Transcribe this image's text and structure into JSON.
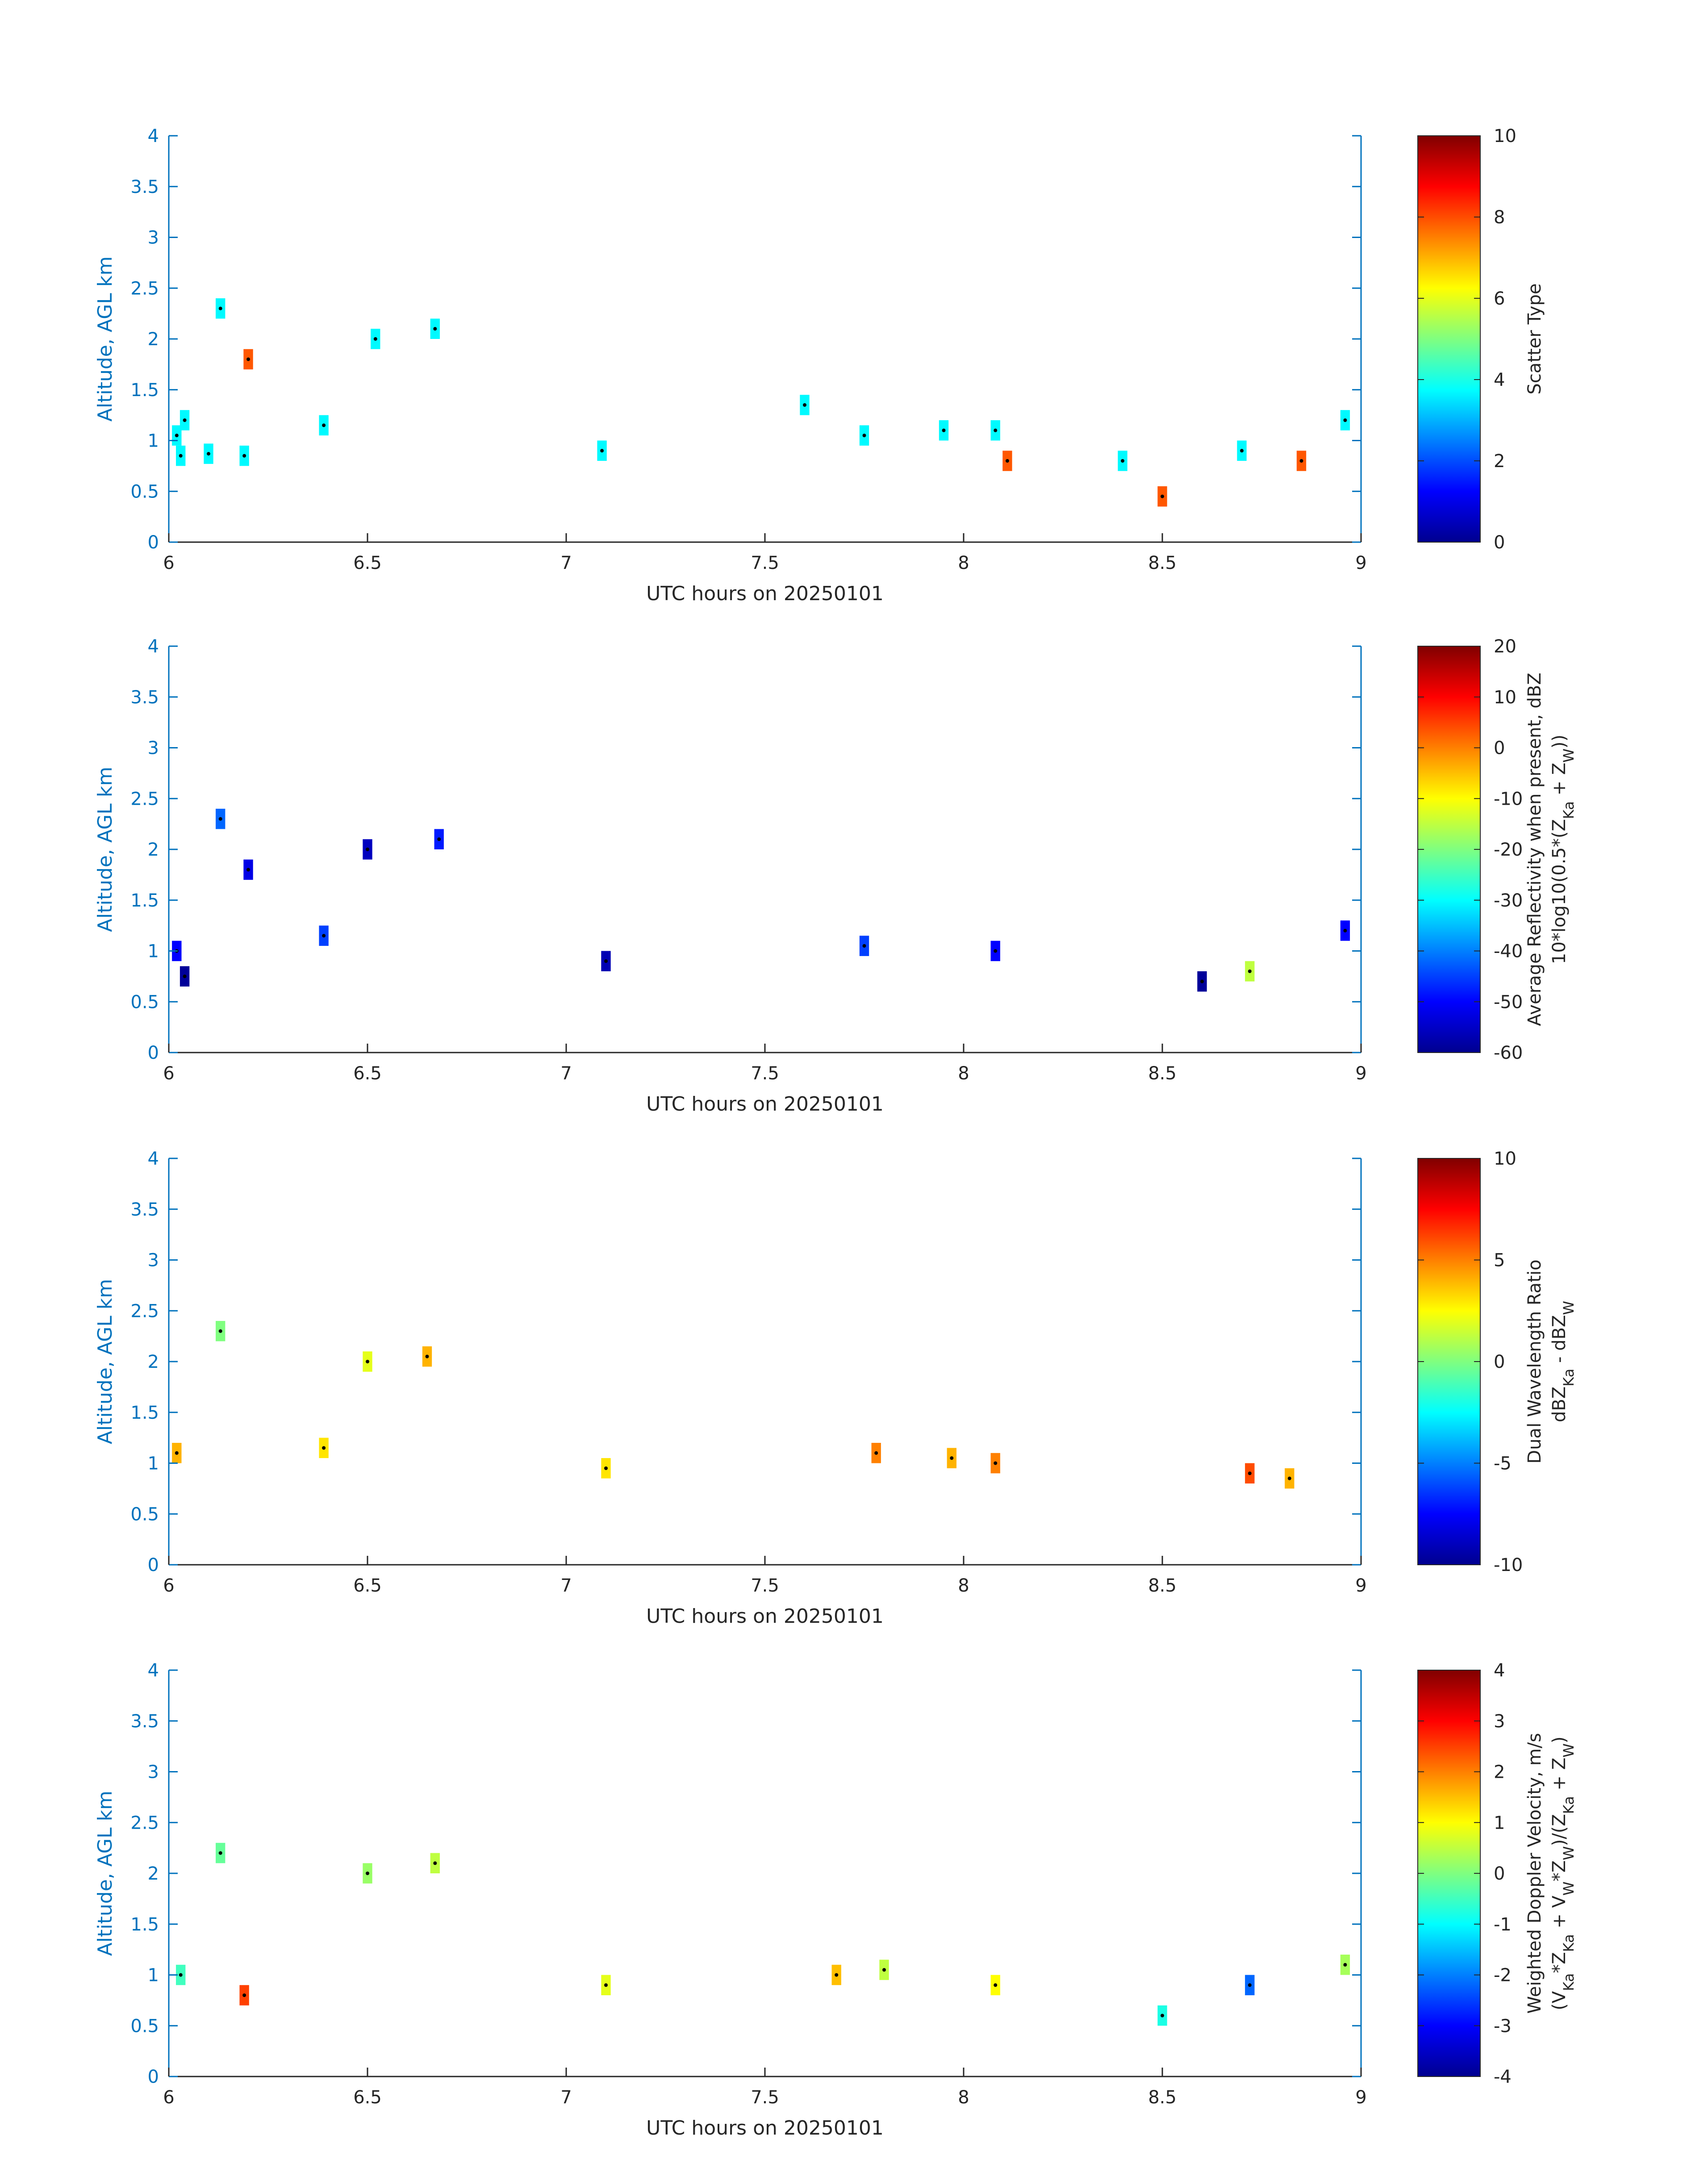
{
  "colors": {
    "axis_blue": "#0072BD",
    "text": "#262626",
    "scatter_fill": "#33FFDD",
    "scatter_alt": "#F44A14",
    "marker": "#000000"
  },
  "colormap": "jet",
  "chart_data": [
    {
      "type": "heatmap",
      "title": "",
      "xlabel": "UTC hours on 20250101",
      "ylabel": "Altitude, AGL km",
      "xlim": [
        6,
        9
      ],
      "ylim": [
        0,
        4
      ],
      "xticks": [
        "6",
        "6.5",
        "7",
        "7.5",
        "8",
        "8.5",
        "9"
      ],
      "yticks": [
        "0",
        "0.5",
        "1",
        "1.5",
        "2",
        "2.5",
        "3",
        "3.5",
        "4"
      ],
      "colorbar": {
        "label": "Scatter Type",
        "clim": [
          0,
          10
        ],
        "ticks": [
          "0",
          "2",
          "4",
          "6",
          "8",
          "10"
        ]
      },
      "cells": [
        {
          "t": 6.02,
          "a": 1.05,
          "v": 3.7
        },
        {
          "t": 6.03,
          "a": 0.85,
          "v": 3.7
        },
        {
          "t": 6.04,
          "a": 1.2,
          "v": 3.7
        },
        {
          "t": 6.1,
          "a": 0.87,
          "v": 3.7
        },
        {
          "t": 6.13,
          "a": 2.3,
          "v": 3.7
        },
        {
          "t": 6.19,
          "a": 0.85,
          "v": 3.7
        },
        {
          "t": 6.2,
          "a": 1.8,
          "v": 7.9
        },
        {
          "t": 6.39,
          "a": 1.15,
          "v": 3.7
        },
        {
          "t": 6.52,
          "a": 2.0,
          "v": 3.7
        },
        {
          "t": 6.67,
          "a": 2.1,
          "v": 3.7
        },
        {
          "t": 7.09,
          "a": 0.9,
          "v": 3.7
        },
        {
          "t": 7.6,
          "a": 1.35,
          "v": 3.7
        },
        {
          "t": 7.75,
          "a": 1.05,
          "v": 3.7
        },
        {
          "t": 7.95,
          "a": 1.1,
          "v": 3.7
        },
        {
          "t": 8.08,
          "a": 1.1,
          "v": 3.7
        },
        {
          "t": 8.11,
          "a": 0.8,
          "v": 7.9
        },
        {
          "t": 8.4,
          "a": 0.8,
          "v": 3.7
        },
        {
          "t": 8.5,
          "a": 0.45,
          "v": 7.9
        },
        {
          "t": 8.7,
          "a": 0.9,
          "v": 3.7
        },
        {
          "t": 8.85,
          "a": 0.8,
          "v": 7.9
        },
        {
          "t": 8.96,
          "a": 1.2,
          "v": 3.7
        }
      ]
    },
    {
      "type": "heatmap",
      "title": "",
      "xlabel": "UTC hours on 20250101",
      "ylabel": "Altitude, AGL km",
      "xlim": [
        6,
        9
      ],
      "ylim": [
        0,
        4
      ],
      "xticks": [
        "6",
        "6.5",
        "7",
        "7.5",
        "8",
        "8.5",
        "9"
      ],
      "yticks": [
        "0",
        "0.5",
        "1",
        "1.5",
        "2",
        "2.5",
        "3",
        "3.5",
        "4"
      ],
      "colorbar": {
        "label": "Average Reflectivity when present, dBZ",
        "label2": "10*log10(0.5*(Z_Ka + Z_W))",
        "clim": [
          -60,
          20
        ],
        "ticks": [
          "-60",
          "-50",
          "-40",
          "-30",
          "-20",
          "-10",
          "0",
          "10",
          "20"
        ]
      },
      "cells": [
        {
          "t": 6.02,
          "a": 1.0,
          "v": -50
        },
        {
          "t": 6.04,
          "a": 0.75,
          "v": -58
        },
        {
          "t": 6.13,
          "a": 2.3,
          "v": -42
        },
        {
          "t": 6.2,
          "a": 1.8,
          "v": -52
        },
        {
          "t": 6.39,
          "a": 1.15,
          "v": -45
        },
        {
          "t": 6.5,
          "a": 2.0,
          "v": -55
        },
        {
          "t": 6.68,
          "a": 2.1,
          "v": -48
        },
        {
          "t": 7.1,
          "a": 0.9,
          "v": -56
        },
        {
          "t": 7.75,
          "a": 1.05,
          "v": -45
        },
        {
          "t": 8.08,
          "a": 1.0,
          "v": -50
        },
        {
          "t": 8.6,
          "a": 0.7,
          "v": -58
        },
        {
          "t": 8.72,
          "a": 0.8,
          "v": -15
        },
        {
          "t": 8.96,
          "a": 1.2,
          "v": -50
        }
      ]
    },
    {
      "type": "heatmap",
      "title": "",
      "xlabel": "UTC hours on 20250101",
      "ylabel": "Altitude, AGL km",
      "xlim": [
        6,
        9
      ],
      "ylim": [
        0,
        4
      ],
      "xticks": [
        "6",
        "6.5",
        "7",
        "7.5",
        "8",
        "8.5",
        "9"
      ],
      "yticks": [
        "0",
        "0.5",
        "1",
        "1.5",
        "2",
        "2.5",
        "3",
        "3.5",
        "4"
      ],
      "colorbar": {
        "label": "Dual Wavelength Ratio",
        "label2": "dBZ_Ka - dBZ_W",
        "clim": [
          -10,
          10
        ],
        "ticks": [
          "-10",
          "-5",
          "0",
          "5",
          "10"
        ]
      },
      "cells": [
        {
          "t": 6.02,
          "a": 1.1,
          "v": 4
        },
        {
          "t": 6.13,
          "a": 2.3,
          "v": 0
        },
        {
          "t": 6.39,
          "a": 1.15,
          "v": 3
        },
        {
          "t": 6.5,
          "a": 2.0,
          "v": 2
        },
        {
          "t": 6.65,
          "a": 2.05,
          "v": 4
        },
        {
          "t": 7.1,
          "a": 0.95,
          "v": 3
        },
        {
          "t": 7.78,
          "a": 1.1,
          "v": 5
        },
        {
          "t": 7.97,
          "a": 1.05,
          "v": 4
        },
        {
          "t": 8.08,
          "a": 1.0,
          "v": 5
        },
        {
          "t": 8.72,
          "a": 0.9,
          "v": 6
        },
        {
          "t": 8.82,
          "a": 0.85,
          "v": 4
        }
      ]
    },
    {
      "type": "heatmap",
      "title": "",
      "xlabel": "UTC hours on 20250101",
      "ylabel": "Altitude, AGL km",
      "xlim": [
        6,
        9
      ],
      "ylim": [
        0,
        4
      ],
      "xticks": [
        "6",
        "6.5",
        "7",
        "7.5",
        "8",
        "8.5",
        "9"
      ],
      "yticks": [
        "0",
        "0.5",
        "1",
        "1.5",
        "2",
        "2.5",
        "3",
        "3.5",
        "4"
      ],
      "colorbar": {
        "label": "Weighted Doppler Velocity, m/s",
        "label2": "(V_Ka*Z_Ka + V_W*Z_W)/(Z_Ka + Z_W)",
        "clim": [
          -4,
          4
        ],
        "ticks": [
          "-4",
          "-3",
          "-2",
          "-1",
          "0",
          "1",
          "2",
          "3",
          "4"
        ]
      },
      "cells": [
        {
          "t": 6.03,
          "a": 1.0,
          "v": -0.5
        },
        {
          "t": 6.13,
          "a": 2.2,
          "v": -0.2
        },
        {
          "t": 6.19,
          "a": 0.8,
          "v": 2.5
        },
        {
          "t": 6.5,
          "a": 2.0,
          "v": 0.2
        },
        {
          "t": 6.67,
          "a": 2.1,
          "v": 0.5
        },
        {
          "t": 7.1,
          "a": 0.9,
          "v": 0.8
        },
        {
          "t": 7.68,
          "a": 1.0,
          "v": 1.5
        },
        {
          "t": 7.8,
          "a": 1.05,
          "v": 0.5
        },
        {
          "t": 8.08,
          "a": 0.9,
          "v": 1.0
        },
        {
          "t": 8.5,
          "a": 0.6,
          "v": -0.8
        },
        {
          "t": 8.72,
          "a": 0.9,
          "v": -2.2
        },
        {
          "t": 8.96,
          "a": 1.1,
          "v": 0.3
        }
      ]
    }
  ]
}
